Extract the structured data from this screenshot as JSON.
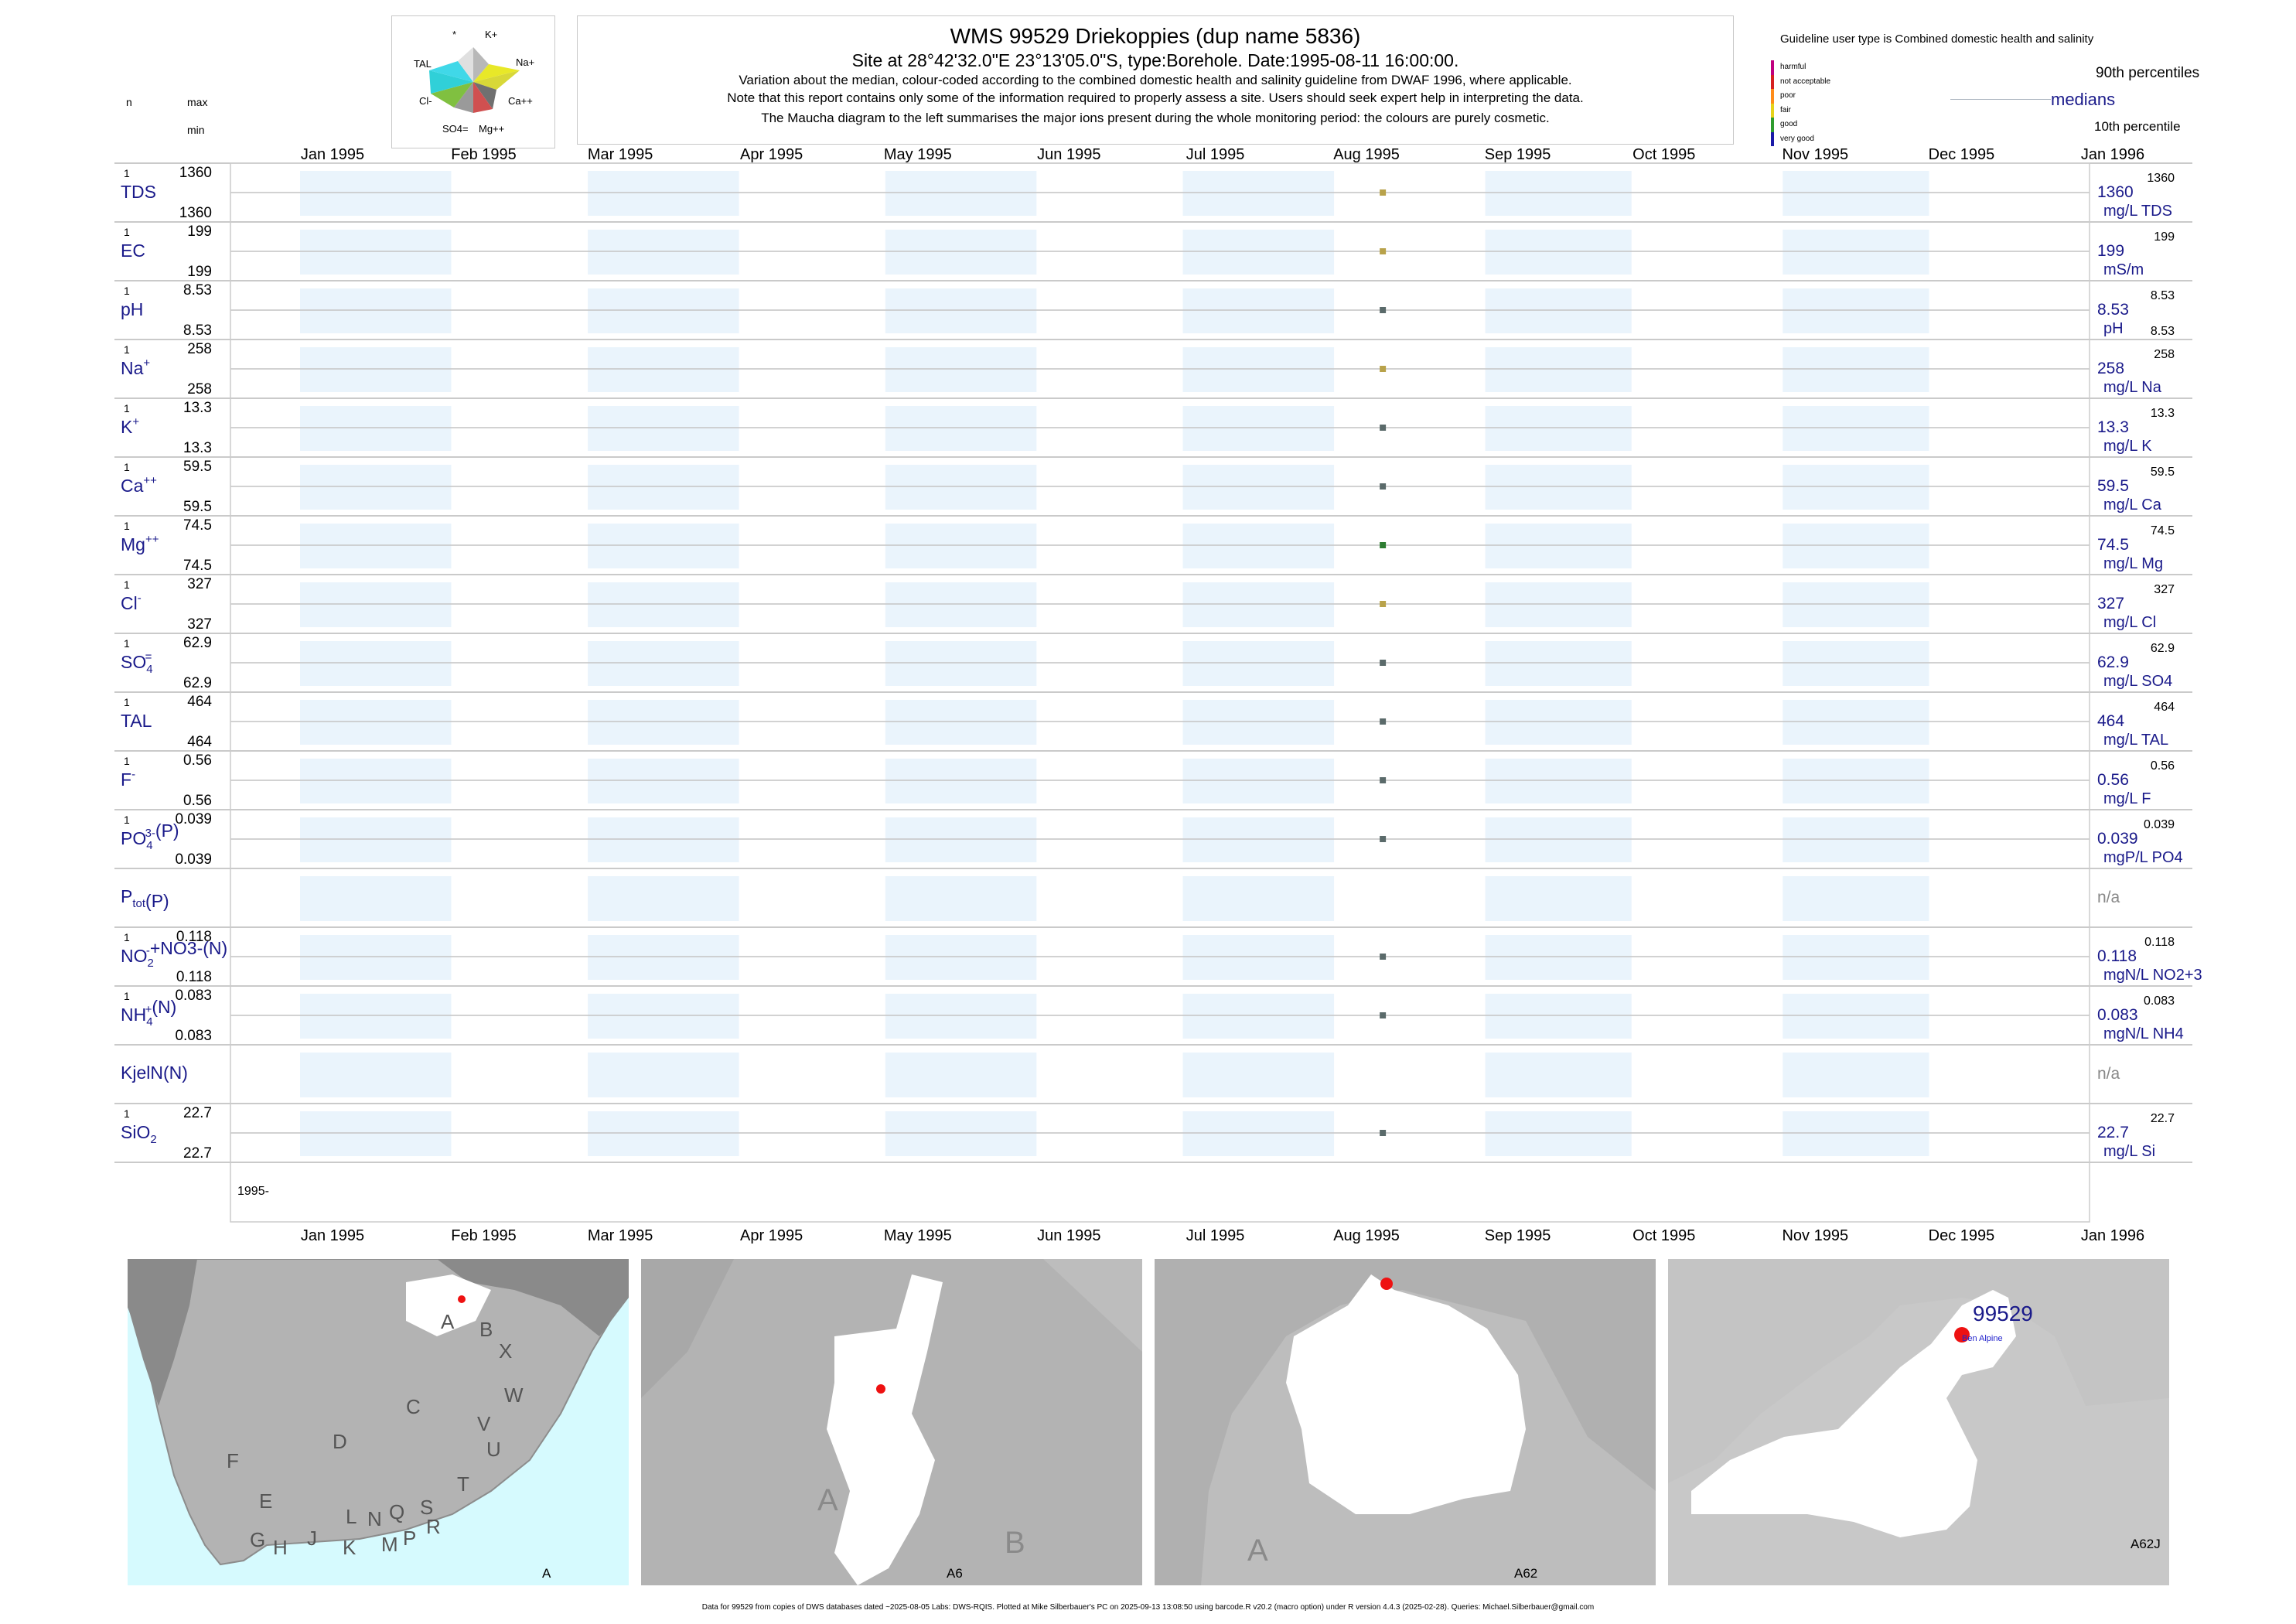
{
  "header": {
    "title": "WMS 99529  Driekoppies (dup name 5836)",
    "subtitle": "Site at 28°42'32.0\"E 23°13'05.0\"S, type:Borehole. Date:1995-08-11 16:00:00.",
    "note_lines": [
      "Variation about the median,  colour-coded according to the combined domestic health and salinity guideline from DWAF 1996, where applicable.",
      "Note that this report contains only some of the information required to properly assess a site. Users should seek expert help in interpreting the data.",
      "The Maucha diagram to the left summarises the major ions present during the whole monitoring period: the colours are purely cosmetic."
    ]
  },
  "maucha": {
    "labels": [
      "*",
      "K+",
      "TAL",
      "Na+",
      "Cl-",
      "Ca++",
      "SO4=",
      "Mg++"
    ]
  },
  "legend": {
    "guideline_text": "Guideline user type is Combined domestic health and salinity",
    "classes": [
      {
        "label": "harmful",
        "color": "#c0007f"
      },
      {
        "label": "not acceptable",
        "color": "#d62020"
      },
      {
        "label": "poor",
        "color": "#ff8c1a"
      },
      {
        "label": "fair",
        "color": "#e6d21a"
      },
      {
        "label": "good",
        "color": "#2e9c2e"
      },
      {
        "label": "very good",
        "color": "#1a1aa8"
      }
    ],
    "p90": "90th percentiles",
    "median": "medians",
    "p10": "10th percentile"
  },
  "left_header": {
    "n": "n",
    "max": "max",
    "min": "min"
  },
  "chart_data": {
    "type": "scatter",
    "x_axis": {
      "range": [
        "1995-01-01",
        "1996-01-01"
      ],
      "tick_labels": [
        "Jan 1995",
        "Feb 1995",
        "Mar 1995",
        "Apr 1995",
        "May 1995",
        "Jun 1995",
        "Jul 1995",
        "Aug 1995",
        "Sep 1995",
        "Oct 1995",
        "Nov 1995",
        "Dec 1995",
        "Jan 1996"
      ],
      "year_label": "1995-"
    },
    "sample_date": "1995-08-11",
    "panels": [
      {
        "label": "TDS",
        "sup": "",
        "sub": "",
        "n": "1",
        "max": "1360",
        "min": "1360",
        "median": "1360",
        "right_max": "1360",
        "right_min": "",
        "unit": "mg/L TDS",
        "color": "#b8a24a"
      },
      {
        "label": "EC",
        "sup": "",
        "sub": "",
        "n": "1",
        "max": "199",
        "min": "199",
        "median": "199",
        "right_max": "199",
        "right_min": "",
        "unit": "mS/m",
        "color": "#b8a24a"
      },
      {
        "label": "pH",
        "sup": "",
        "sub": "",
        "n": "1",
        "max": "8.53",
        "min": "8.53",
        "median": "8.53",
        "right_max": "8.53",
        "right_min": "8.53",
        "unit": "pH",
        "color": "#5a6a6a"
      },
      {
        "label": "Na",
        "sup": "+",
        "sub": "",
        "n": "1",
        "max": "258",
        "min": "258",
        "median": "258",
        "right_max": "258",
        "right_min": "",
        "unit": "mg/L Na",
        "color": "#b8a24a"
      },
      {
        "label": "K",
        "sup": "+",
        "sub": "",
        "n": "1",
        "max": "13.3",
        "min": "13.3",
        "median": "13.3",
        "right_max": "13.3",
        "right_min": "",
        "unit": "mg/L K",
        "color": "#5a6a6a"
      },
      {
        "label": "Ca",
        "sup": "++",
        "sub": "",
        "n": "1",
        "max": "59.5",
        "min": "59.5",
        "median": "59.5",
        "right_max": "59.5",
        "right_min": "",
        "unit": "mg/L Ca",
        "color": "#5a6a6a"
      },
      {
        "label": "Mg",
        "sup": "++",
        "sub": "",
        "n": "1",
        "max": "74.5",
        "min": "74.5",
        "median": "74.5",
        "right_max": "74.5",
        "right_min": "",
        "unit": "mg/L Mg",
        "color": "#2e7d32"
      },
      {
        "label": "Cl",
        "sup": "-",
        "sub": "",
        "n": "1",
        "max": "327",
        "min": "327",
        "median": "327",
        "right_max": "327",
        "right_min": "",
        "unit": "mg/L Cl",
        "color": "#b8a24a"
      },
      {
        "label": "SO",
        "sup": "=",
        "sub": "4",
        "n": "1",
        "max": "62.9",
        "min": "62.9",
        "median": "62.9",
        "right_max": "62.9",
        "right_min": "",
        "unit": "mg/L SO4",
        "color": "#5a6a6a"
      },
      {
        "label": "TAL",
        "sup": "",
        "sub": "",
        "n": "1",
        "max": "464",
        "min": "464",
        "median": "464",
        "right_max": "464",
        "right_min": "",
        "unit": "mg/L TAL",
        "color": "#5a6a6a"
      },
      {
        "label": "F",
        "sup": "-",
        "sub": "",
        "n": "1",
        "max": "0.56",
        "min": "0.56",
        "median": "0.56",
        "right_max": "0.56",
        "right_min": "",
        "unit": "mg/L F",
        "color": "#5a6a6a"
      },
      {
        "label": "PO",
        "sup": "3-",
        "sub": "4",
        "suffix": "(P)",
        "n": "1",
        "max": "0.039",
        "min": "0.039",
        "median": "0.039",
        "right_max": "0.039",
        "right_min": "",
        "unit": "mgP/L PO4",
        "color": "#5a6a6a"
      },
      {
        "label": "P",
        "sup": "",
        "sub": "tot",
        "suffix": "(P)",
        "n": "",
        "max": "",
        "min": "",
        "median": "n/a",
        "right_max": "",
        "right_min": "",
        "unit": "",
        "color": ""
      },
      {
        "label": "NO",
        "sup": "-",
        "sub": "2",
        "suffix": "+NO3-(N)",
        "n": "1",
        "max": "0.118",
        "min": "0.118",
        "median": "0.118",
        "right_max": "0.118",
        "right_min": "",
        "unit": "mgN/L NO2+3",
        "color": "#5a6a6a"
      },
      {
        "label": "NH",
        "sup": "+",
        "sub": "4",
        "suffix": "(N)",
        "n": "1",
        "max": "0.083",
        "min": "0.083",
        "median": "0.083",
        "right_max": "0.083",
        "right_min": "",
        "unit": "mgN/L NH4",
        "color": "#5a6a6a"
      },
      {
        "label": "KjelN(N)",
        "sup": "",
        "sub": "",
        "n": "",
        "max": "",
        "min": "",
        "median": "n/a",
        "right_max": "",
        "right_min": "",
        "unit": "",
        "color": ""
      },
      {
        "label": "SiO",
        "sup": "",
        "sub": "2",
        "n": "1",
        "max": "22.7",
        "min": "22.7",
        "median": "22.7",
        "right_max": "22.7",
        "right_min": "",
        "unit": "mg/L Si",
        "color": "#5a6a6a"
      }
    ]
  },
  "maps": {
    "m1_letters": [
      "A",
      "B",
      "X",
      "C",
      "W",
      "D",
      "V",
      "U",
      "F",
      "T",
      "E",
      "L",
      "N",
      "Q",
      "S",
      "R",
      "G",
      "H",
      "J",
      "K",
      "M",
      "P"
    ],
    "m1_label": "A",
    "m2_letters": [
      "A",
      "B"
    ],
    "m2_label": "A6",
    "m3_letters": [
      "A"
    ],
    "m3_label": "A62",
    "m4_site": "99529",
    "m4_place": "Ben Alpine",
    "m4_label": "A62J"
  },
  "footer": "Data for 99529 from copies of DWS databases dated ~2025-08-05 Labs: DWS-RQIS. Plotted at Mike Silberbauer's PC on 2025-09-13 13:08:50 using barcode.R v20.2 (macro option) under R version 4.4.3 (2025-02-28). Queries: Michael.Silberbauer@gmail.com"
}
